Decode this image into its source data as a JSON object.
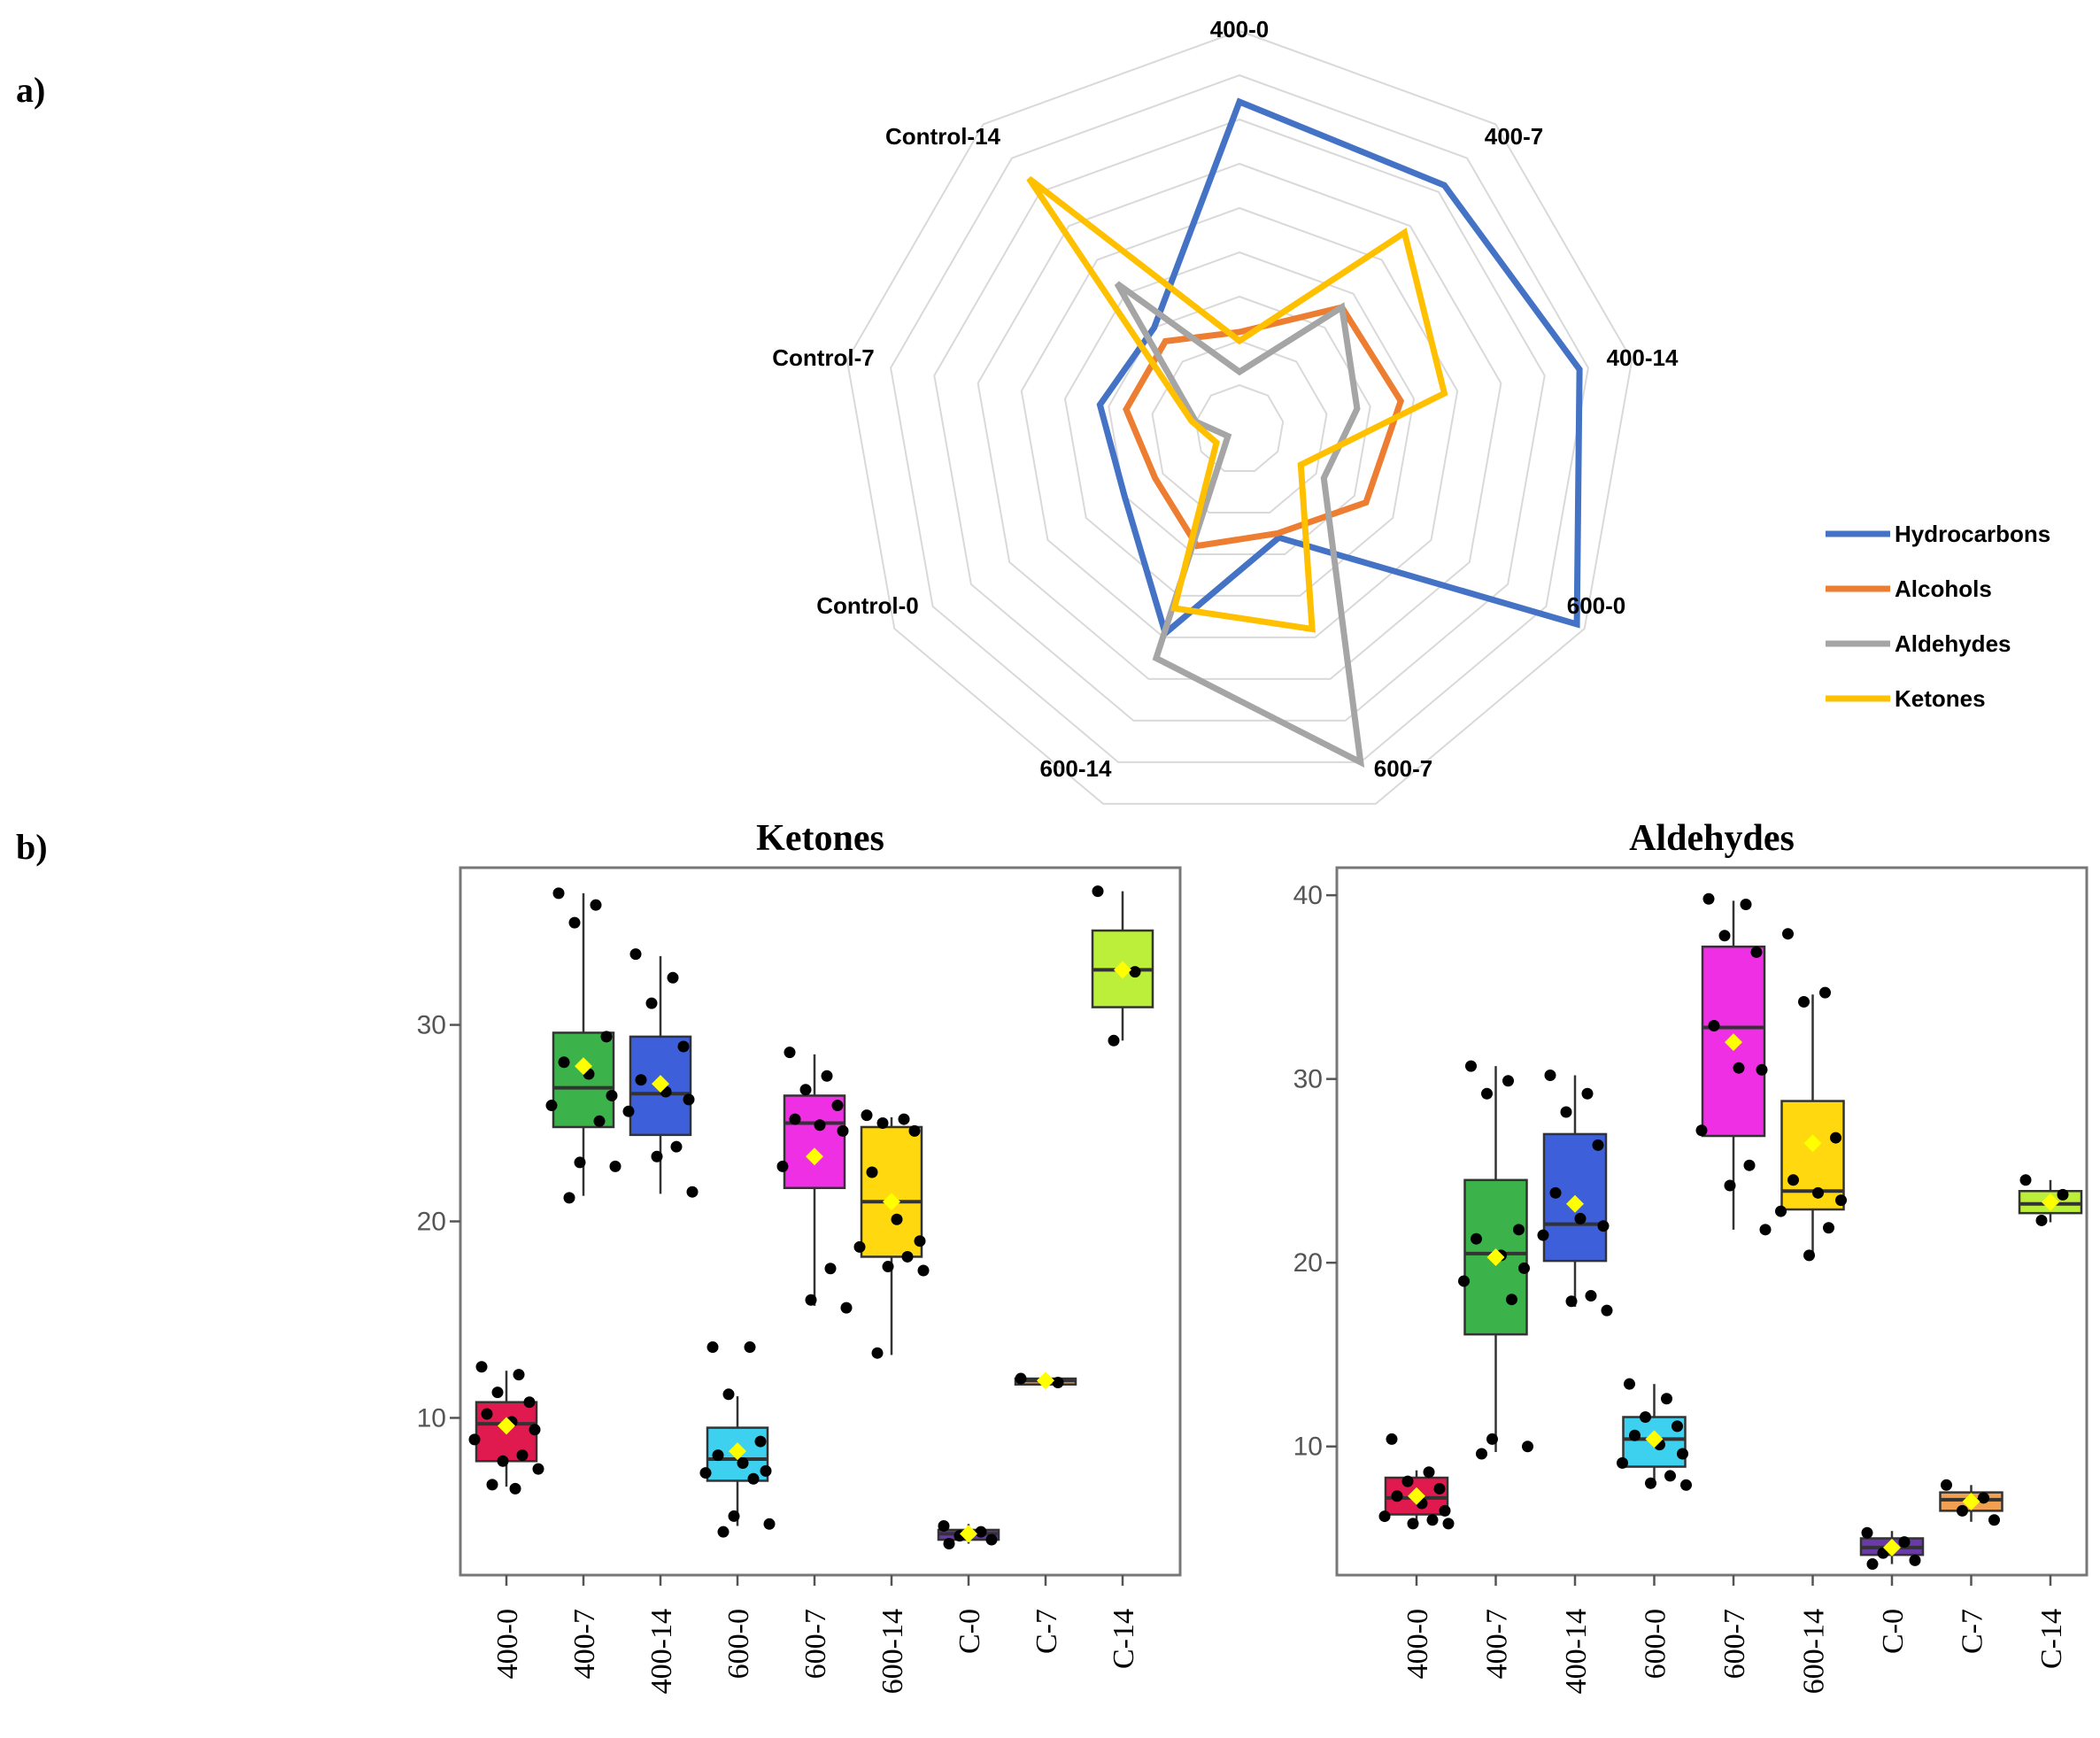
{
  "panel_labels": {
    "a": "a)",
    "b": "b)"
  },
  "colors": {
    "hydrocarbons": "#4472c4",
    "alcohols": "#ed7d31",
    "aldehydes": "#a5a5a5",
    "ketones": "#ffc000",
    "grid": "#d9d9d9",
    "mean_marker": "#ffff00"
  },
  "chart_data": [
    {
      "type": "radar",
      "axes": [
        "400-0",
        "400-7",
        "400-14",
        "600-0",
        "600-7",
        "600-14",
        "Control-0",
        "Control-7",
        "Control-14"
      ],
      "rmax": 9,
      "rings": 9,
      "series": [
        {
          "name": "Hydrocarbons",
          "color": "#4472c4",
          "values": [
            7.4,
            7.2,
            7.8,
            8.8,
            2.6,
            4.9,
            3.0,
            3.2,
            3.0
          ]
        },
        {
          "name": "Alcohols",
          "color": "#ed7d31",
          "values": [
            2.2,
            3.6,
            3.7,
            3.3,
            2.5,
            2.8,
            2.2,
            2.6,
            2.6
          ]
        },
        {
          "name": "Aldehydes",
          "color": "#a5a5a5",
          "values": [
            1.3,
            3.6,
            2.7,
            2.2,
            8.0,
            5.5,
            0.3,
            1.0,
            4.3
          ]
        },
        {
          "name": "Ketones",
          "color": "#ffc000",
          "values": [
            2.0,
            5.8,
            4.7,
            1.6,
            4.8,
            4.3,
            0.6,
            1.1,
            7.4
          ]
        }
      ],
      "legend_position": "bottom-right"
    },
    {
      "type": "boxplot",
      "title": "Ketones",
      "categories": [
        "400-0",
        "400-7",
        "400-14",
        "600-0",
        "600-7",
        "600-14",
        "C-0",
        "C-7",
        "C-14"
      ],
      "ylim": [
        2,
        38
      ],
      "yticks": [
        10,
        20,
        30
      ],
      "ytick_labels": [
        "10",
        "20",
        "30"
      ],
      "box_colors": [
        "#e01a4f",
        "#3cb34a",
        "#3d5fd9",
        "#3ed0ef",
        "#ee2fe4",
        "#ffd80f",
        "#6a3aa8",
        "#f0a050",
        "#bcef3a"
      ],
      "boxes": [
        {
          "q1": 7.8,
          "median": 9.7,
          "q3": 10.8,
          "whisker_low": 6.5,
          "whisker_high": 12.4,
          "mean": 9.6,
          "points": [
            12.6,
            12.2,
            11.3,
            10.8,
            10.2,
            9.8,
            9.4,
            8.9,
            8.1,
            7.8,
            7.4,
            6.6,
            6.4
          ]
        },
        {
          "q1": 24.8,
          "median": 26.8,
          "q3": 29.6,
          "whisker_low": 21.3,
          "whisker_high": 36.7,
          "mean": 27.9,
          "points": [
            36.7,
            36.1,
            35.2,
            29.4,
            28.1,
            27.5,
            26.4,
            25.9,
            25.1,
            23.0,
            22.8,
            21.2
          ]
        },
        {
          "q1": 24.4,
          "median": 26.5,
          "q3": 29.4,
          "whisker_low": 21.4,
          "whisker_high": 33.5,
          "mean": 27.0,
          "points": [
            33.6,
            32.4,
            31.1,
            28.9,
            27.2,
            26.6,
            26.2,
            25.6,
            23.8,
            23.3,
            21.5
          ]
        },
        {
          "q1": 6.8,
          "median": 7.9,
          "q3": 9.5,
          "whisker_low": 4.5,
          "whisker_high": 11.1,
          "mean": 8.3,
          "points": [
            13.6,
            13.6,
            11.2,
            8.8,
            8.1,
            7.7,
            7.3,
            7.2,
            6.9,
            5.0,
            4.6,
            4.2
          ]
        },
        {
          "q1": 21.7,
          "median": 25.0,
          "q3": 26.4,
          "whisker_low": 15.7,
          "whisker_high": 28.5,
          "mean": 23.3,
          "points": [
            28.6,
            27.4,
            26.7,
            25.9,
            25.2,
            24.9,
            24.6,
            22.8,
            17.6,
            16.0,
            15.6
          ]
        },
        {
          "q1": 18.2,
          "median": 21.0,
          "q3": 24.8,
          "whisker_low": 13.2,
          "whisker_high": 25.3,
          "mean": 21.0,
          "points": [
            25.4,
            25.2,
            25.0,
            24.6,
            22.5,
            20.1,
            19.0,
            18.7,
            18.2,
            17.7,
            17.5,
            13.3
          ]
        },
        {
          "q1": 3.8,
          "median": 4.1,
          "q3": 4.3,
          "whisker_low": 3.6,
          "whisker_high": 4.6,
          "mean": 4.1,
          "points": [
            4.5,
            4.2,
            4.0,
            3.8,
            3.6
          ]
        },
        {
          "q1": 11.7,
          "median": 11.9,
          "q3": 12.0,
          "whisker_low": 11.6,
          "whisker_high": 12.1,
          "mean": 11.9,
          "points": [
            12.0,
            11.8
          ]
        },
        {
          "q1": 30.9,
          "median": 32.8,
          "q3": 34.8,
          "whisker_low": 29.2,
          "whisker_high": 36.8,
          "mean": 32.8,
          "points": [
            36.8,
            32.7,
            29.2
          ]
        }
      ]
    },
    {
      "type": "boxplot",
      "title": "Aldehydes",
      "categories": [
        "400-0",
        "400-7",
        "400-14",
        "600-0",
        "600-7",
        "600-14",
        "C-0",
        "C-7",
        "C-14"
      ],
      "ylim": [
        3,
        41.5
      ],
      "yticks": [
        10,
        20,
        30,
        40
      ],
      "ytick_labels": [
        "10",
        "20",
        "30",
        "40"
      ],
      "box_colors": [
        "#e01a4f",
        "#3cb34a",
        "#3d5fd9",
        "#3ed0ef",
        "#ee2fe4",
        "#ffd80f",
        "#6a3aa8",
        "#f0a050",
        "#bcef3a"
      ],
      "boxes": [
        {
          "q1": 6.3,
          "median": 7.2,
          "q3": 8.3,
          "whisker_low": 5.8,
          "whisker_high": 8.7,
          "mean": 7.3,
          "points": [
            10.4,
            8.6,
            8.1,
            7.7,
            7.3,
            6.9,
            6.5,
            6.2,
            6.0,
            5.8,
            5.8
          ]
        },
        {
          "q1": 16.1,
          "median": 20.5,
          "q3": 24.5,
          "whisker_low": 9.7,
          "whisker_high": 30.7,
          "mean": 20.3,
          "points": [
            30.7,
            29.9,
            29.2,
            21.8,
            21.3,
            20.4,
            19.7,
            19.0,
            18.0,
            10.4,
            10.0,
            9.6
          ]
        },
        {
          "q1": 20.1,
          "median": 22.1,
          "q3": 27.0,
          "whisker_low": 17.6,
          "whisker_high": 30.2,
          "mean": 23.2,
          "points": [
            30.2,
            29.2,
            28.2,
            26.4,
            23.8,
            22.4,
            22.0,
            21.5,
            18.2,
            17.9,
            17.4
          ]
        },
        {
          "q1": 8.9,
          "median": 10.4,
          "q3": 11.6,
          "whisker_low": 7.9,
          "whisker_high": 13.4,
          "mean": 10.4,
          "points": [
            13.4,
            12.6,
            11.6,
            11.1,
            10.6,
            10.1,
            9.6,
            9.1,
            8.4,
            8.0,
            7.9
          ]
        },
        {
          "q1": 26.9,
          "median": 32.8,
          "q3": 37.2,
          "whisker_low": 21.8,
          "whisker_high": 39.7,
          "mean": 32.0,
          "points": [
            39.8,
            39.5,
            37.8,
            36.9,
            32.9,
            30.6,
            30.5,
            27.2,
            25.3,
            24.2,
            21.8
          ]
        },
        {
          "q1": 22.9,
          "median": 23.9,
          "q3": 28.8,
          "whisker_low": 20.5,
          "whisker_high": 34.6,
          "mean": 26.5,
          "points": [
            37.9,
            34.7,
            34.2,
            26.8,
            24.5,
            23.8,
            23.4,
            22.8,
            21.9,
            20.4
          ]
        },
        {
          "q1": 4.1,
          "median": 4.5,
          "q3": 5.0,
          "whisker_low": 3.6,
          "whisker_high": 5.4,
          "mean": 4.5,
          "points": [
            5.3,
            4.8,
            4.2,
            3.8,
            3.6
          ]
        },
        {
          "q1": 6.5,
          "median": 7.1,
          "q3": 7.5,
          "whisker_low": 5.9,
          "whisker_high": 7.9,
          "mean": 7.0,
          "points": [
            7.9,
            7.2,
            6.5,
            6.0
          ]
        },
        {
          "q1": 22.7,
          "median": 23.2,
          "q3": 23.9,
          "whisker_low": 22.2,
          "whisker_high": 24.5,
          "mean": 23.3,
          "points": [
            24.5,
            23.7,
            22.3
          ]
        }
      ]
    }
  ]
}
